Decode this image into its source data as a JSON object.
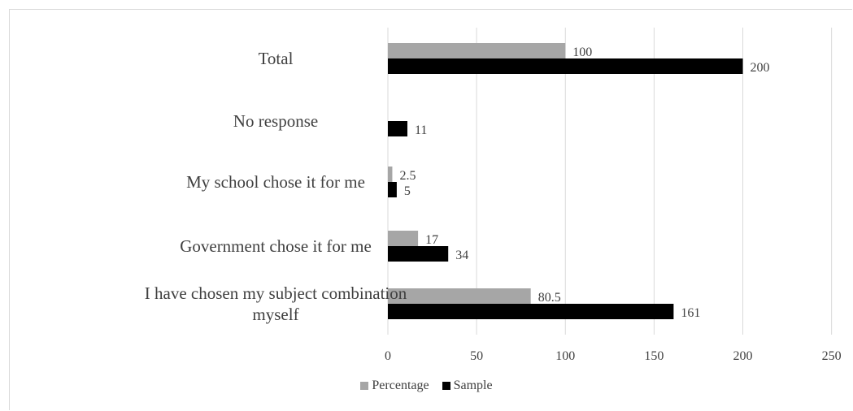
{
  "chart_data": {
    "type": "bar",
    "orientation": "horizontal",
    "categories": [
      "I have chosen my subject combination myself",
      "Government chose it for me",
      "My school chose it for me",
      "No response",
      "Total"
    ],
    "category_label_lines": [
      [
        "I have chosen my subject combination",
        "myself"
      ],
      [
        "Government chose it for me"
      ],
      [
        "My school chose it for me"
      ],
      [
        "No response"
      ],
      [
        "Total"
      ]
    ],
    "series": [
      {
        "name": "Percentage",
        "color": "#a6a6a6",
        "values": [
          80.5,
          17,
          2.5,
          null,
          100
        ],
        "labels": [
          "80.5",
          "17",
          "2.5",
          "",
          "100"
        ]
      },
      {
        "name": "Sample",
        "color": "#000000",
        "values": [
          161,
          34,
          5,
          11,
          200
        ],
        "labels": [
          "161",
          "34",
          "5",
          "11",
          "200"
        ]
      }
    ],
    "xlim": [
      0,
      250
    ],
    "xticks": [
      0,
      50,
      100,
      150,
      200,
      250
    ],
    "xtick_labels": [
      "0",
      "50",
      "100",
      "150",
      "200",
      "250"
    ],
    "gridlines": "vertical",
    "legend_position": "bottom"
  }
}
